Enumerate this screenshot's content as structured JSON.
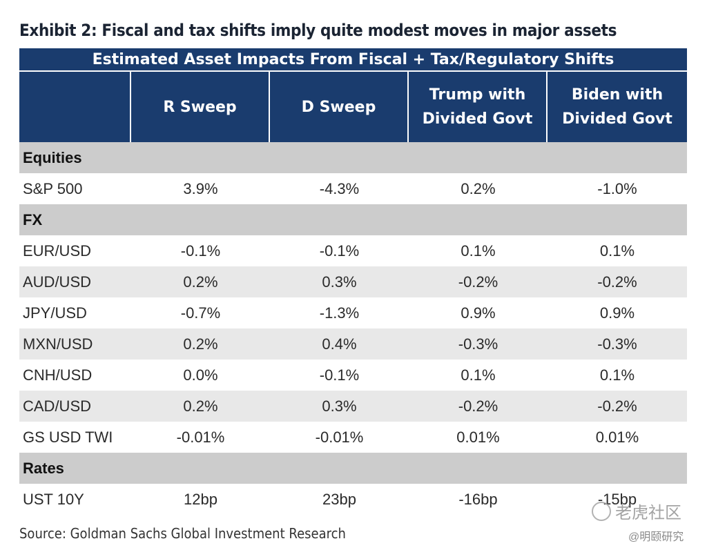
{
  "title": "Exhibit 2: Fiscal and tax shifts imply quite modest moves in major assets",
  "table": {
    "super_header": "Estimated Asset Impacts From Fiscal + Tax/Regulatory Shifts",
    "columns": [
      "",
      "R Sweep",
      "D Sweep",
      "Trump with\nDivided Govt",
      "Biden with\nDivided Govt"
    ],
    "sections": [
      {
        "name": "Equities",
        "rows": [
          {
            "label": "S&P 500",
            "values": [
              "3.9%",
              "-4.3%",
              "0.2%",
              "-1.0%"
            ]
          }
        ]
      },
      {
        "name": "FX",
        "rows": [
          {
            "label": "EUR/USD",
            "values": [
              "-0.1%",
              "-0.1%",
              "0.1%",
              "0.1%"
            ]
          },
          {
            "label": "AUD/USD",
            "values": [
              "0.2%",
              "0.3%",
              "-0.2%",
              "-0.2%"
            ]
          },
          {
            "label": "JPY/USD",
            "values": [
              "-0.7%",
              "-1.3%",
              "0.9%",
              "0.9%"
            ]
          },
          {
            "label": "MXN/USD",
            "values": [
              "0.2%",
              "0.4%",
              "-0.3%",
              "-0.3%"
            ]
          },
          {
            "label": "CNH/USD",
            "values": [
              "0.0%",
              "-0.1%",
              "0.1%",
              "0.1%"
            ]
          },
          {
            "label": "CAD/USD",
            "values": [
              "0.2%",
              "0.3%",
              "-0.2%",
              "-0.2%"
            ]
          },
          {
            "label": "GS USD TWI",
            "values": [
              "-0.01%",
              "-0.01%",
              "0.01%",
              "0.01%"
            ]
          }
        ]
      },
      {
        "name": "Rates",
        "rows": [
          {
            "label": "UST 10Y",
            "values": [
              "12bp",
              "23bp",
              "-16bp",
              "-15bp"
            ]
          }
        ]
      }
    ]
  },
  "source": "Source: Goldman Sachs Global Investment Research",
  "watermark": {
    "primary": "老虎社区",
    "secondary": "@明颐研究"
  },
  "colors": {
    "header_bg": "#1a3c6e",
    "section_bg": "#cccccc",
    "stripe_bg": "#e8e8e8"
  }
}
